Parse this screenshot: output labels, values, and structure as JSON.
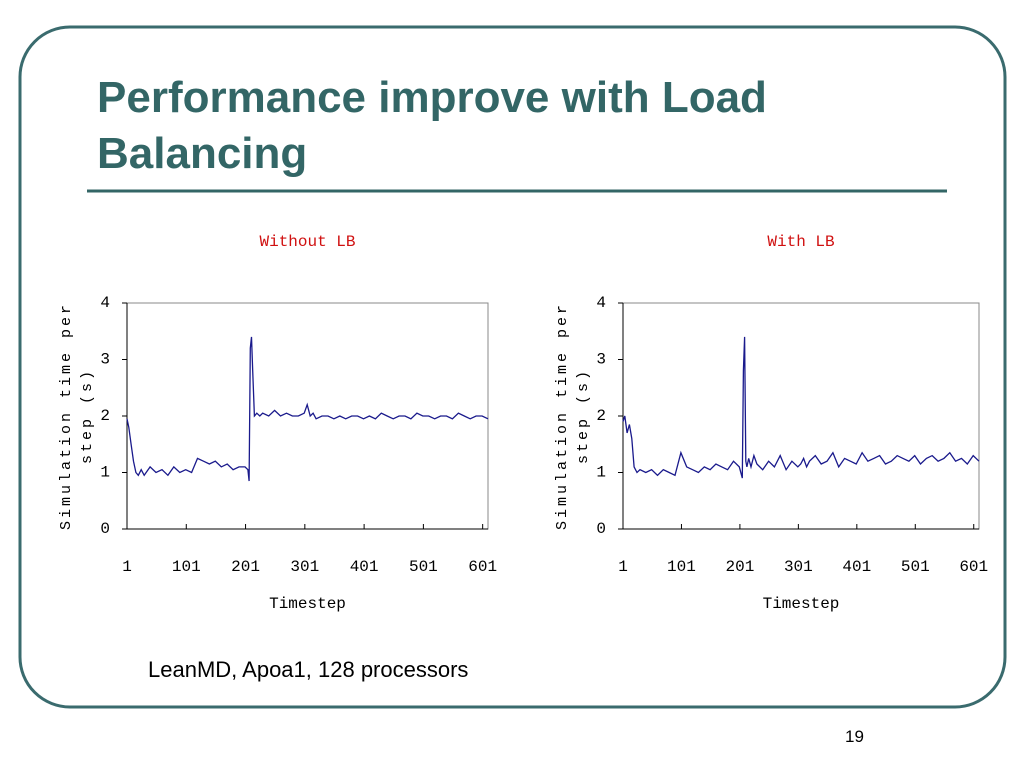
{
  "title": "Performance improve with Load Balancing",
  "caption": "LeanMD, Apoa1, 128 processors",
  "page_number": "19",
  "chart_data": [
    {
      "type": "line",
      "title": "Without LB",
      "xlabel": "Timestep",
      "ylabel": "Simulation time per step (s)",
      "xlim": [
        1,
        610
      ],
      "xticks": [
        1,
        101,
        201,
        301,
        401,
        501,
        601
      ],
      "ylim": [
        0,
        4
      ],
      "yticks": [
        0,
        1,
        2,
        3,
        4
      ],
      "series": [
        {
          "color": "#1a1a8c",
          "x": [
            1,
            4,
            8,
            12,
            16,
            20,
            25,
            30,
            40,
            50,
            60,
            70,
            80,
            90,
            100,
            110,
            120,
            130,
            140,
            150,
            160,
            170,
            180,
            190,
            200,
            205,
            207,
            209,
            211,
            213,
            216,
            220,
            225,
            230,
            240,
            250,
            260,
            270,
            280,
            290,
            300,
            305,
            310,
            315,
            320,
            330,
            340,
            350,
            360,
            370,
            380,
            390,
            400,
            410,
            420,
            430,
            440,
            450,
            460,
            470,
            480,
            490,
            500,
            510,
            520,
            530,
            540,
            550,
            560,
            570,
            580,
            590,
            600,
            610
          ],
          "values": [
            1.95,
            1.8,
            1.5,
            1.2,
            1.0,
            0.95,
            1.05,
            0.95,
            1.1,
            1.0,
            1.05,
            0.95,
            1.1,
            1.0,
            1.05,
            1.0,
            1.25,
            1.2,
            1.15,
            1.2,
            1.1,
            1.15,
            1.05,
            1.1,
            1.1,
            1.05,
            0.85,
            3.2,
            3.4,
            2.8,
            2.0,
            2.05,
            2.0,
            2.05,
            2.0,
            2.1,
            2.0,
            2.05,
            2.0,
            2.0,
            2.05,
            2.2,
            2.0,
            2.05,
            1.95,
            2.0,
            2.0,
            1.95,
            2.0,
            1.95,
            2.0,
            2.0,
            1.95,
            2.0,
            1.95,
            2.05,
            2.0,
            1.95,
            2.0,
            2.0,
            1.95,
            2.05,
            2.0,
            2.0,
            1.95,
            2.0,
            2.0,
            1.95,
            2.05,
            2.0,
            1.95,
            2.0,
            2.0,
            1.95
          ]
        }
      ]
    },
    {
      "type": "line",
      "title": "With LB",
      "xlabel": "Timestep",
      "ylabel": "Simulation time per step (s)",
      "xlim": [
        1,
        610
      ],
      "xticks": [
        1,
        101,
        201,
        301,
        401,
        501,
        601
      ],
      "ylim": [
        0,
        4
      ],
      "yticks": [
        0,
        1,
        2,
        3,
        4
      ],
      "series": [
        {
          "color": "#1a1a8c",
          "x": [
            1,
            4,
            8,
            12,
            16,
            20,
            25,
            30,
            40,
            50,
            60,
            70,
            80,
            90,
            100,
            110,
            120,
            130,
            140,
            150,
            160,
            170,
            180,
            190,
            200,
            205,
            207,
            209,
            211,
            213,
            216,
            220,
            225,
            230,
            240,
            250,
            260,
            270,
            280,
            290,
            300,
            305,
            310,
            315,
            320,
            330,
            340,
            350,
            360,
            370,
            380,
            390,
            400,
            410,
            420,
            430,
            440,
            450,
            460,
            470,
            480,
            490,
            500,
            510,
            520,
            530,
            540,
            550,
            560,
            570,
            580,
            590,
            600,
            610
          ],
          "values": [
            1.9,
            2.0,
            1.7,
            1.85,
            1.6,
            1.1,
            1.0,
            1.05,
            1.0,
            1.05,
            0.95,
            1.05,
            1.0,
            0.95,
            1.35,
            1.1,
            1.05,
            1.0,
            1.1,
            1.05,
            1.15,
            1.1,
            1.05,
            1.2,
            1.1,
            0.9,
            2.8,
            3.4,
            1.2,
            1.1,
            1.25,
            1.1,
            1.3,
            1.15,
            1.05,
            1.2,
            1.1,
            1.3,
            1.05,
            1.2,
            1.1,
            1.15,
            1.25,
            1.1,
            1.2,
            1.3,
            1.15,
            1.2,
            1.35,
            1.1,
            1.25,
            1.2,
            1.15,
            1.35,
            1.2,
            1.25,
            1.3,
            1.15,
            1.2,
            1.3,
            1.25,
            1.2,
            1.3,
            1.15,
            1.25,
            1.3,
            1.2,
            1.25,
            1.35,
            1.2,
            1.25,
            1.15,
            1.3,
            1.2
          ]
        }
      ]
    }
  ]
}
